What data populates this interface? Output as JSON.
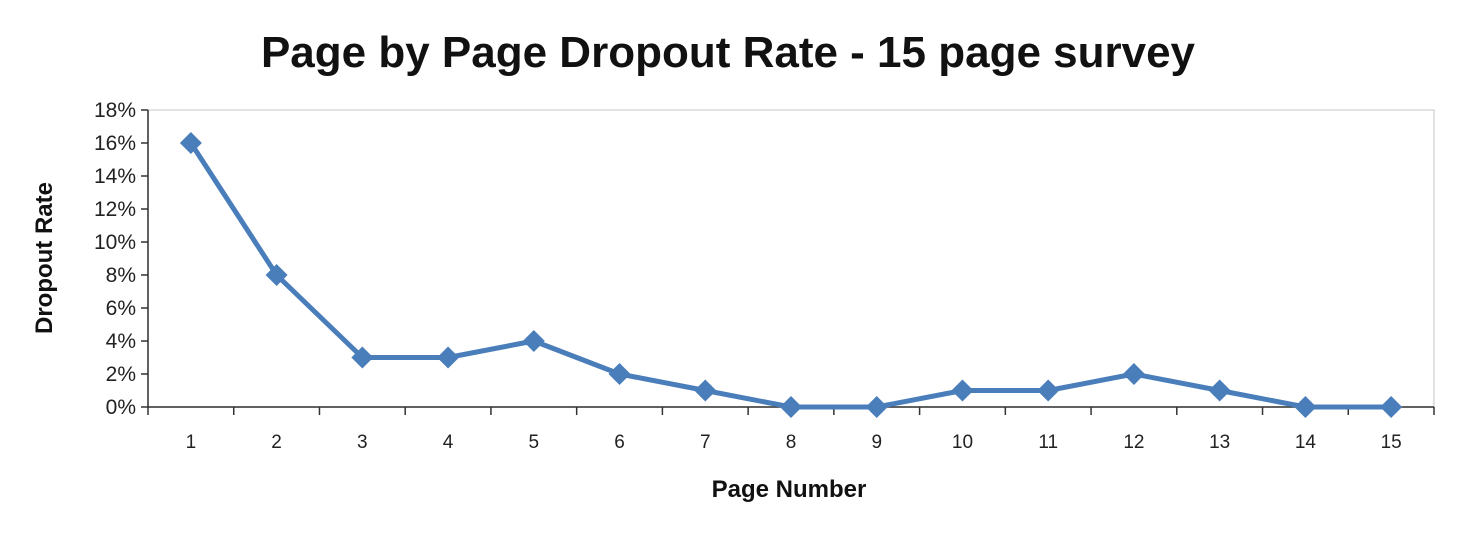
{
  "chart_data": {
    "type": "line",
    "title": "Page by Page Dropout Rate - 15 page survey",
    "xlabel": "Page Number",
    "ylabel": "Dropout Rate",
    "categories": [
      "1",
      "2",
      "3",
      "4",
      "5",
      "6",
      "7",
      "8",
      "9",
      "10",
      "11",
      "12",
      "13",
      "14",
      "15"
    ],
    "series": [
      {
        "values": [
          16,
          8,
          3,
          3,
          4,
          2,
          1,
          0,
          0,
          1,
          1,
          2,
          1,
          0,
          0
        ]
      }
    ],
    "y_unit": "percent",
    "ylim": [
      0,
      18
    ],
    "y_ticks": [
      "0%",
      "2%",
      "4%",
      "6%",
      "8%",
      "10%",
      "12%",
      "14%",
      "16%",
      "18%"
    ],
    "grid": false,
    "legend": "none",
    "marker": "diamond",
    "colors": {
      "series": "#4a7ebb",
      "axis": "#333333",
      "frame": "#d9d9d9"
    }
  }
}
